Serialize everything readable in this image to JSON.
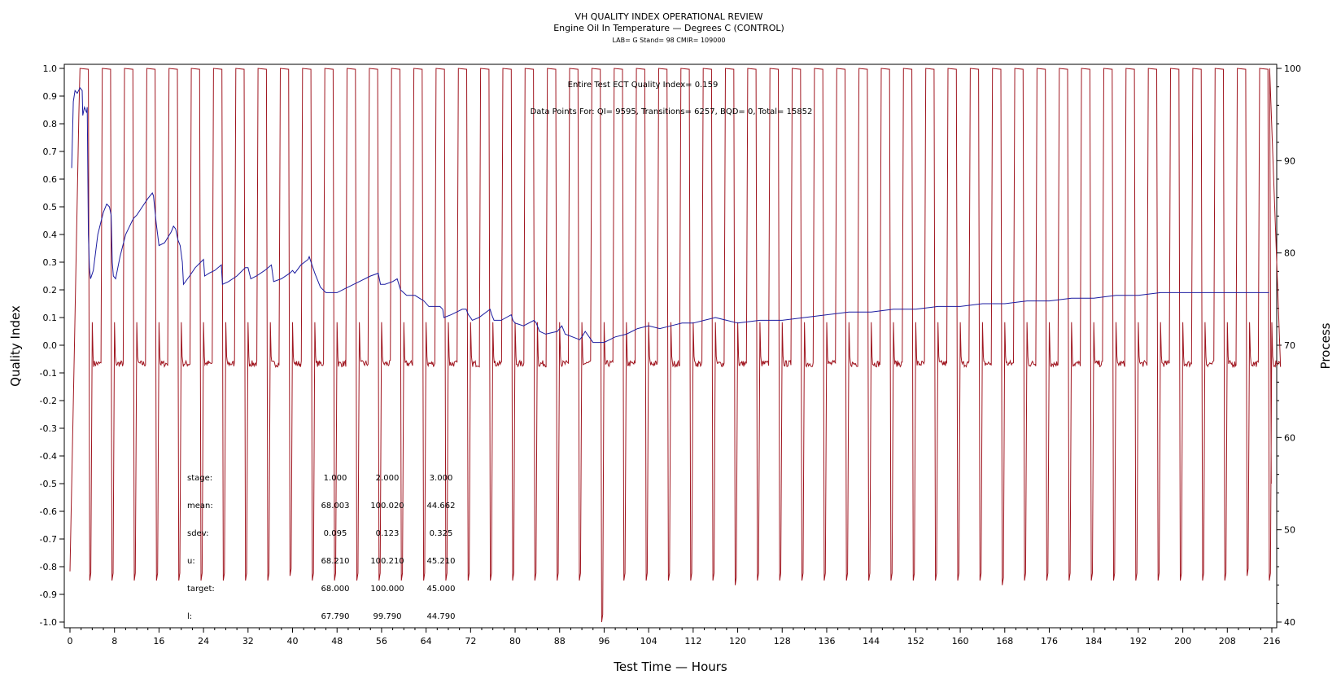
{
  "chart_data": {
    "type": "line",
    "title": "VH QUALITY INDEX OPERATIONAL REVIEW",
    "subtitle": "Engine Oil In Temperature — Degrees C (CONTROL)",
    "subtitle2": "LAB= G Stand= 98 CMIR= 109000",
    "xlabel": "Test Time — Hours",
    "ylabel": "Quality Index",
    "ylabel2": "Process",
    "xlim": [
      0,
      216
    ],
    "ylim": [
      -1.0,
      1.0
    ],
    "y2lim": [
      40,
      100
    ],
    "xticks": [
      0,
      8,
      16,
      24,
      32,
      40,
      48,
      56,
      64,
      72,
      80,
      88,
      96,
      104,
      112,
      120,
      128,
      136,
      144,
      152,
      160,
      168,
      176,
      184,
      192,
      200,
      208,
      216
    ],
    "yticks": [
      "1.0",
      "0.9",
      "0.8",
      "0.7",
      "0.6",
      "0.5",
      "0.4",
      "0.3",
      "0.2",
      "0.1",
      "0.0",
      "-0.1",
      "-0.2",
      "-0.3",
      "-0.4",
      "-0.5",
      "-0.6",
      "-0.7",
      "-0.8",
      "-0.9",
      "-1.0"
    ],
    "y2ticks": [
      100,
      90,
      80,
      70,
      60,
      50,
      40
    ],
    "grid": false,
    "annotation_top": "Entire Test ECT Quality Index=   0.159",
    "annotation_points": "Data Points For: QI=  9595, Transitions=  6257, BQD=     0, Total=  15852",
    "stats": {
      "rows": [
        {
          "label": "stage:",
          "values": [
            "1.000",
            "2.000",
            "3.000"
          ]
        },
        {
          "label": "mean:",
          "values": [
            "68.003",
            "100.020",
            "44.662"
          ]
        },
        {
          "label": "sdev:",
          "values": [
            "0.095",
            "0.123",
            "0.325"
          ]
        },
        {
          "label": "u:",
          "values": [
            "68.210",
            "100.210",
            "45.210"
          ]
        },
        {
          "label": "target:",
          "values": [
            "68.000",
            "100.000",
            "45.000"
          ]
        },
        {
          "label": "l:",
          "values": [
            "67.790",
            "99.790",
            "44.790"
          ]
        }
      ]
    },
    "series": [
      {
        "color": "#1c1ca0",
        "axis": "left",
        "x": [
          0.3,
          0.6,
          0.9,
          1.3,
          1.8,
          2.2,
          2.3,
          2.6,
          3.0,
          3.1,
          3.3,
          3.5,
          3.7,
          4.2,
          5.0,
          6.0,
          6.6,
          7.1,
          7.4,
          7.6,
          7.8,
          8.2,
          9.0,
          10.0,
          11.2,
          11.5,
          12.0,
          13.0,
          14.0,
          14.8,
          15.0,
          15.5,
          16.0,
          17.0,
          18.2,
          18.6,
          19.0,
          19.4,
          19.8,
          20.2,
          20.4,
          21.5,
          22.5,
          23.5,
          24.0,
          24.2,
          25.0,
          26.0,
          27.2,
          27.4,
          28.5,
          30.0,
          31.5,
          32.0,
          32.5,
          33.5,
          35.0,
          36.2,
          36.6,
          38.0,
          39.5,
          40.0,
          40.4,
          41.5,
          42.8,
          43.0,
          44.0,
          45.0,
          46.0,
          48.0,
          50.0,
          52.0,
          54.0,
          55.4,
          55.8,
          56.6,
          58.0,
          58.8,
          59.4,
          60.5,
          62.0,
          62.8,
          63.6,
          64.5,
          66.5,
          67.0,
          67.2,
          68.5,
          70.5,
          71.2,
          71.6,
          72.0,
          72.3,
          73.5,
          75.5,
          75.8,
          76.2,
          77.5,
          79.3,
          79.6,
          80.0,
          81.5,
          83.4,
          83.8,
          84.4,
          85.5,
          87.6,
          88.0,
          88.4,
          89.0,
          91.6,
          92.0,
          92.6,
          94.0,
          96.0,
          98.0,
          100.0,
          101.0,
          102.0,
          104.0,
          106.0,
          108.0,
          110.0,
          112.0,
          114.0,
          116.0,
          118.0,
          120.0,
          124.0,
          128.0,
          132.0,
          136.0,
          140.0,
          144.0,
          148.0,
          152.0,
          156.0,
          160.0,
          164.0,
          168.0,
          172.0,
          176.0,
          180.0,
          184.0,
          188.0,
          192.0,
          196.0,
          200.0,
          204.0,
          208.0,
          212.0,
          215.5
        ],
        "y": [
          0.64,
          0.88,
          0.92,
          0.91,
          0.93,
          0.92,
          0.83,
          0.86,
          0.84,
          0.86,
          0.4,
          0.28,
          0.24,
          0.27,
          0.4,
          0.48,
          0.51,
          0.5,
          0.47,
          0.3,
          0.25,
          0.24,
          0.32,
          0.4,
          0.45,
          0.46,
          0.47,
          0.5,
          0.53,
          0.55,
          0.54,
          0.44,
          0.36,
          0.37,
          0.41,
          0.43,
          0.42,
          0.38,
          0.36,
          0.3,
          0.22,
          0.25,
          0.28,
          0.3,
          0.31,
          0.25,
          0.26,
          0.27,
          0.29,
          0.22,
          0.23,
          0.25,
          0.28,
          0.28,
          0.24,
          0.25,
          0.27,
          0.29,
          0.23,
          0.24,
          0.26,
          0.27,
          0.26,
          0.29,
          0.31,
          0.32,
          0.26,
          0.21,
          0.19,
          0.19,
          0.21,
          0.23,
          0.25,
          0.26,
          0.22,
          0.22,
          0.23,
          0.24,
          0.2,
          0.18,
          0.18,
          0.17,
          0.16,
          0.14,
          0.14,
          0.13,
          0.1,
          0.11,
          0.13,
          0.13,
          0.11,
          0.1,
          0.09,
          0.1,
          0.13,
          0.11,
          0.09,
          0.09,
          0.11,
          0.09,
          0.08,
          0.07,
          0.09,
          0.08,
          0.05,
          0.04,
          0.05,
          0.06,
          0.07,
          0.04,
          0.02,
          0.03,
          0.05,
          0.01,
          0.01,
          0.03,
          0.04,
          0.05,
          0.06,
          0.07,
          0.06,
          0.07,
          0.08,
          0.08,
          0.09,
          0.1,
          0.09,
          0.08,
          0.09,
          0.09,
          0.1,
          0.11,
          0.12,
          0.12,
          0.13,
          0.13,
          0.14,
          0.14,
          0.15,
          0.15,
          0.16,
          0.16,
          0.17,
          0.17,
          0.18,
          0.18,
          0.19,
          0.19,
          0.19,
          0.19,
          0.19,
          0.19
        ],
        "values_note": ""
      },
      {
        "color": "#a01620",
        "axis": "right",
        "type": "cycles",
        "cycle_period_hours": 4,
        "high_start": 1.8,
        "high_value": 100,
        "control_value": 68,
        "low_value": 44.5,
        "dips": [
          [
            96,
            40
          ],
          [
            120,
            44
          ],
          [
            40,
            45
          ],
          [
            168,
            44
          ],
          [
            212,
            45
          ]
        ]
      }
    ]
  }
}
